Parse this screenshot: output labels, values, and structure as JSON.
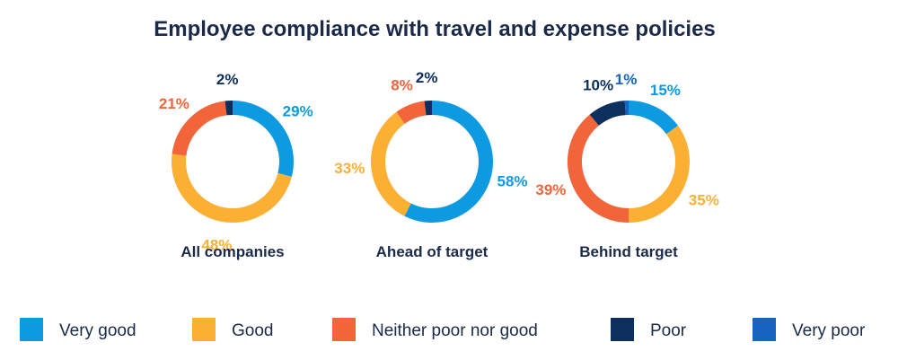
{
  "chart_data": {
    "type": "pie",
    "variant": "donut",
    "title": "Employee compliance with travel and expense policies",
    "categories": [
      "Very good",
      "Good",
      "Neither poor nor good",
      "Poor",
      "Very poor"
    ],
    "colors": {
      "Very good": "#0e9ae0",
      "Good": "#fbb034",
      "Neither poor nor good": "#f2653a",
      "Poor": "#0d2f5e",
      "Very poor": "#1565c0"
    },
    "charts": [
      {
        "name": "All companies",
        "values": [
          29,
          48,
          21,
          2,
          0
        ],
        "labels": [
          "29%",
          "48%",
          "21%",
          "2%",
          ""
        ]
      },
      {
        "name": "Ahead of target",
        "values": [
          58,
          33,
          8,
          2,
          0
        ],
        "labels": [
          "58%",
          "33%",
          "8%",
          "2%",
          ""
        ]
      },
      {
        "name": "Behind target",
        "values": [
          15,
          35,
          39,
          10,
          1
        ],
        "labels": [
          "15%",
          "35%",
          "39%",
          "10%",
          "1%"
        ]
      }
    ],
    "legend_position": "bottom"
  }
}
